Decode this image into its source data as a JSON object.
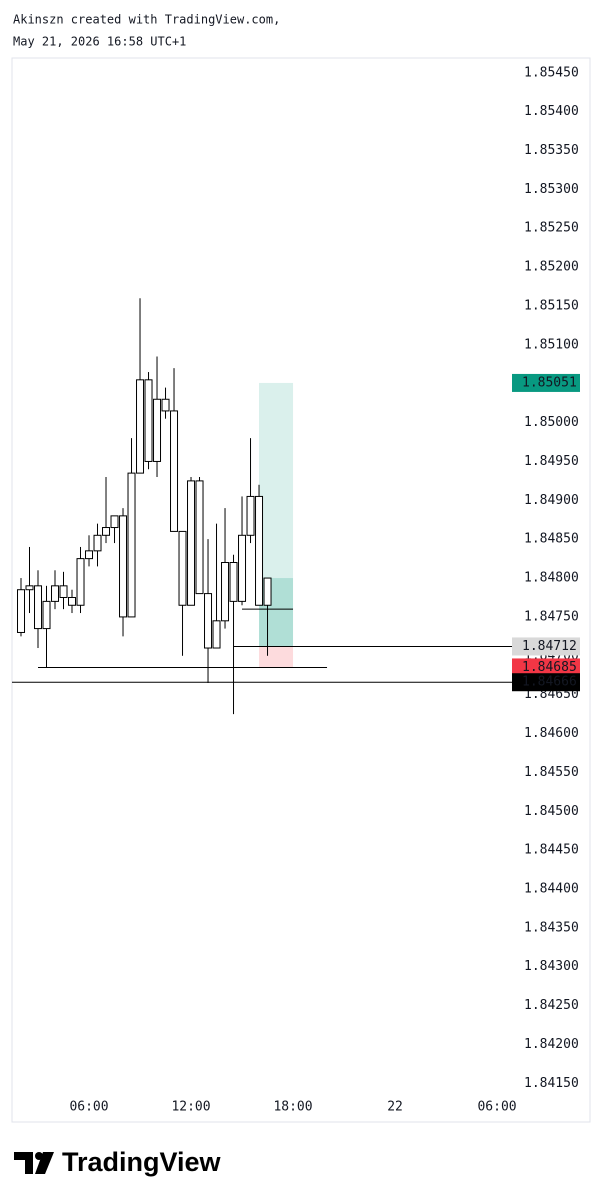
{
  "header": {
    "line1": "Akinszn created with TradingView.com,",
    "line2": "May 21, 2026 16:58 UTC+1"
  },
  "footer": {
    "brand": "TradingView"
  },
  "chart_data": {
    "type": "candlestick",
    "x": [
      2.0,
      2.5,
      3.0,
      3.5,
      4.0,
      4.5,
      5.0,
      5.5,
      6.0,
      6.5,
      7.0,
      7.5,
      8.0,
      8.5,
      9.0,
      9.5,
      10.0,
      10.5,
      11.0,
      11.5,
      12.0,
      12.5,
      13.0,
      13.5,
      14.0,
      14.5,
      15.0,
      15.5,
      16.0,
      16.5
    ],
    "open": [
      1.8473,
      1.84785,
      1.8479,
      1.84735,
      1.8477,
      1.8479,
      1.84775,
      1.84765,
      1.84825,
      1.84835,
      1.84855,
      1.84865,
      1.8488,
      1.8475,
      1.84935,
      1.85055,
      1.8495,
      1.8503,
      1.85015,
      1.8486,
      1.84765,
      1.84925,
      1.8478,
      1.8471,
      1.84745,
      1.8482,
      1.8477,
      1.84855,
      1.84905,
      1.84765
    ],
    "high": [
      1.848,
      1.8484,
      1.8481,
      1.8479,
      1.8481,
      1.84808,
      1.84785,
      1.8484,
      1.84855,
      1.8487,
      1.8493,
      1.8488,
      1.8489,
      1.8498,
      1.8516,
      1.85065,
      1.85085,
      1.85045,
      1.8507,
      1.8486,
      1.8493,
      1.8493,
      1.8485,
      1.8487,
      1.8489,
      1.8483,
      1.84905,
      1.8498,
      1.8492,
      1.848
    ],
    "low": [
      1.84725,
      1.84755,
      1.8471,
      1.84685,
      1.8476,
      1.8476,
      1.84755,
      1.84755,
      1.84815,
      1.84815,
      1.84845,
      1.84845,
      1.84725,
      1.8475,
      1.84935,
      1.8494,
      1.8493,
      1.85005,
      1.8486,
      1.847,
      1.84765,
      1.8478,
      1.84665,
      1.8471,
      1.84735,
      1.84625,
      1.84765,
      1.84845,
      1.84765,
      1.847
    ],
    "close": [
      1.84785,
      1.8479,
      1.84735,
      1.8477,
      1.8479,
      1.84775,
      1.84765,
      1.84825,
      1.84835,
      1.84855,
      1.84865,
      1.8488,
      1.8475,
      1.84935,
      1.85055,
      1.8495,
      1.8503,
      1.85015,
      1.8486,
      1.84765,
      1.84925,
      1.8478,
      1.8471,
      1.84745,
      1.8482,
      1.8477,
      1.84855,
      1.84905,
      1.84765,
      1.848
    ],
    "candle_color": "#ffffff",
    "wick_color": "#000000",
    "xlim": [
      1.47,
      30.88
    ],
    "xticks": [
      {
        "value": 6,
        "label": "06:00"
      },
      {
        "value": 12,
        "label": "12:00"
      },
      {
        "value": 18,
        "label": "18:00"
      },
      {
        "value": 24,
        "label": "22"
      },
      {
        "value": 30,
        "label": "06:00"
      }
    ],
    "ylim": [
      1.84135,
      1.85469
    ],
    "yticks": [
      {
        "value": 1.8545,
        "label": "1.85450"
      },
      {
        "value": 1.854,
        "label": "1.85400"
      },
      {
        "value": 1.8535,
        "label": "1.85350"
      },
      {
        "value": 1.853,
        "label": "1.85300"
      },
      {
        "value": 1.8525,
        "label": "1.85250"
      },
      {
        "value": 1.852,
        "label": "1.85200"
      },
      {
        "value": 1.8515,
        "label": "1.85150"
      },
      {
        "value": 1.851,
        "label": "1.85100"
      },
      {
        "value": 1.8505,
        "label": "1.85050"
      },
      {
        "value": 1.85,
        "label": "1.85000"
      },
      {
        "value": 1.8495,
        "label": "1.84950"
      },
      {
        "value": 1.849,
        "label": "1.84900"
      },
      {
        "value": 1.8485,
        "label": "1.84850"
      },
      {
        "value": 1.848,
        "label": "1.84800"
      },
      {
        "value": 1.8475,
        "label": "1.84750"
      },
      {
        "value": 1.847,
        "label": "1.84700"
      },
      {
        "value": 1.8465,
        "label": "1.84650"
      },
      {
        "value": 1.846,
        "label": "1.84600"
      },
      {
        "value": 1.8455,
        "label": "1.84550"
      },
      {
        "value": 1.845,
        "label": "1.84500"
      },
      {
        "value": 1.8445,
        "label": "1.84450"
      },
      {
        "value": 1.844,
        "label": "1.84400"
      },
      {
        "value": 1.8435,
        "label": "1.84350"
      },
      {
        "value": 1.843,
        "label": "1.84300"
      },
      {
        "value": 1.8425,
        "label": "1.84250"
      },
      {
        "value": 1.842,
        "label": "1.84200"
      },
      {
        "value": 1.8415,
        "label": "1.84150"
      }
    ],
    "grid": false,
    "position": {
      "from": 16.0,
      "to": 18.0,
      "entry": 1.84712,
      "target": 1.85051,
      "stop": 1.84685,
      "target_color": "#089981",
      "stop_color": "#f23645"
    },
    "lines": [
      {
        "value": 1.84685,
        "from": 3.0,
        "to": 20.0
      },
      {
        "value": 1.84666,
        "from": 1.47,
        "to": 30.88
      },
      {
        "value": 1.84712,
        "from": 14.5,
        "to": 30.88
      },
      {
        "value": 1.8476,
        "from": 15.0,
        "to": 18.0
      }
    ],
    "axis_labels": [
      {
        "value": 1.85051,
        "color": "#089981"
      },
      {
        "value": 1.84712,
        "color": "#d9d9d9"
      },
      {
        "value": 1.84685,
        "color": "#f23645"
      },
      {
        "value": 1.84666,
        "color": "#000000"
      }
    ]
  }
}
